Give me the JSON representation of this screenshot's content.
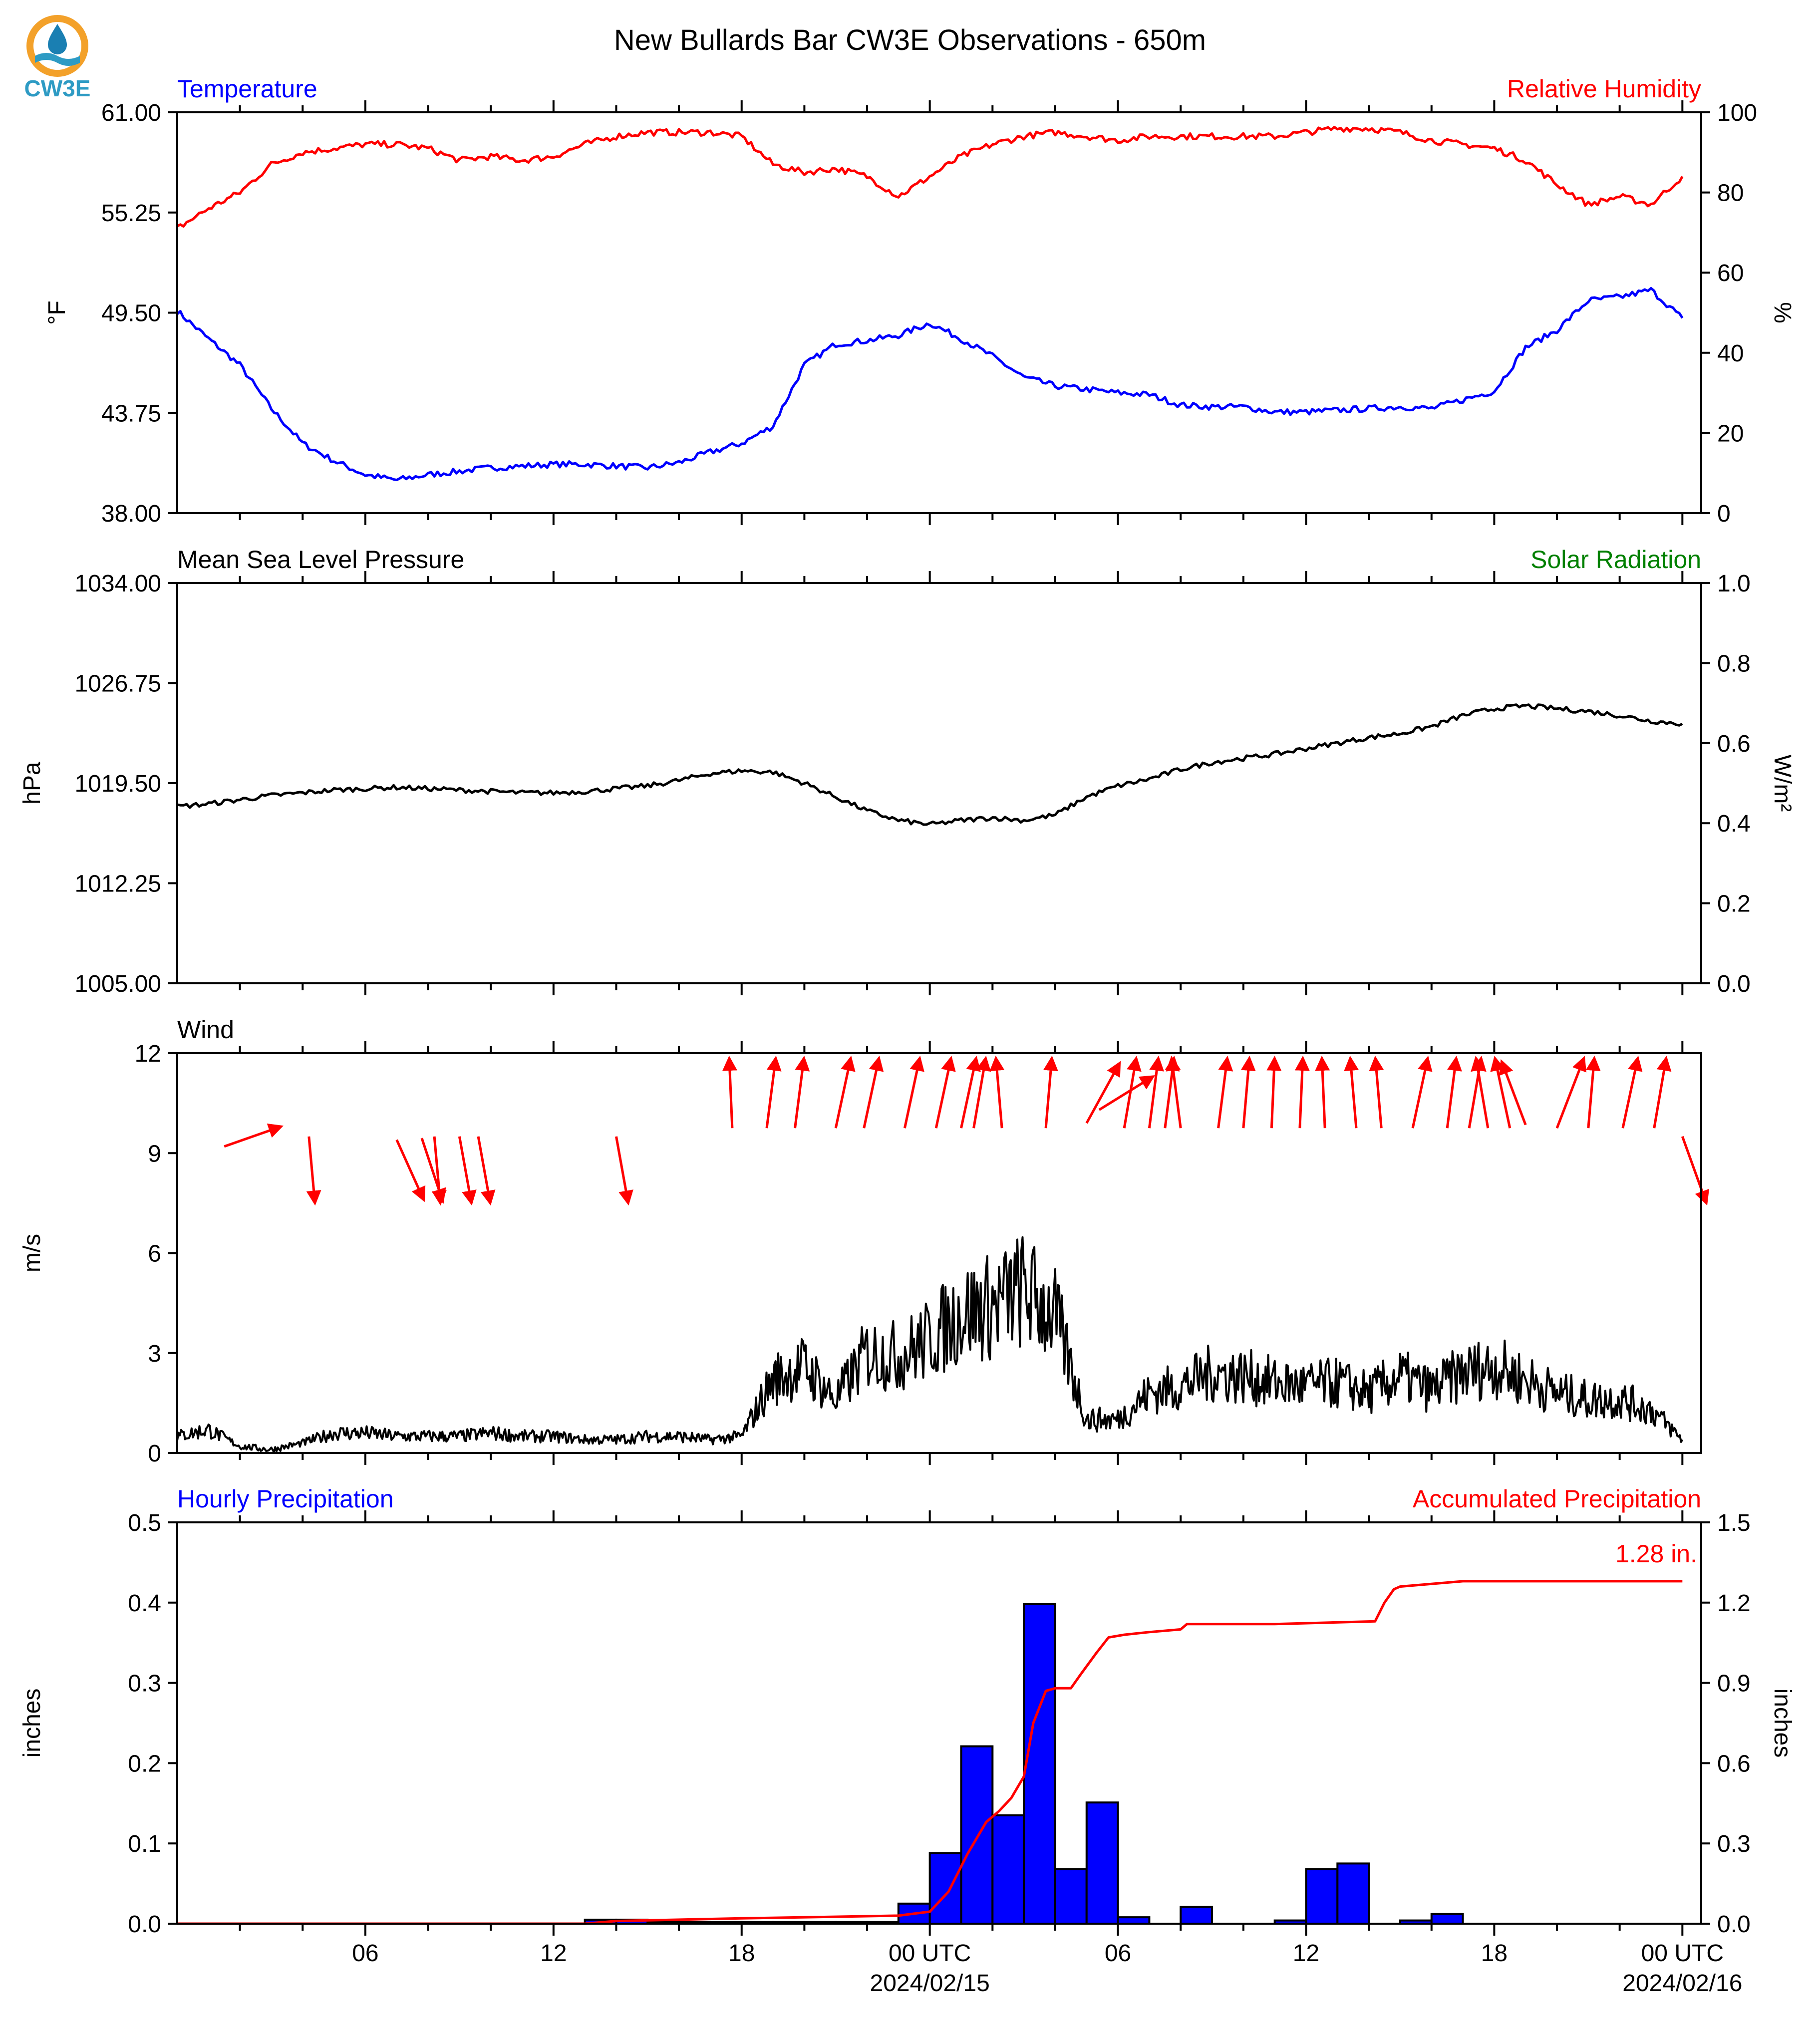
{
  "title": "New Bullards Bar CW3E Observations - 650m",
  "logo": {
    "text": "CW3E",
    "color": "#2e9bc4",
    "accent": "#f3a12a",
    "drop_color": "#1a7fb2"
  },
  "colors": {
    "temperature": "#0000ff",
    "humidity": "#ff0000",
    "pressure": "#000000",
    "wind": "#000000",
    "arrows": "#ff0000",
    "hourly_bars": "#0000ff",
    "accumulated": "#ff0000",
    "solar": "#008000"
  },
  "x_axis": {
    "ticks": [
      "06",
      "12",
      "18",
      "00 UTC",
      "06",
      "12",
      "18",
      "00 UTC"
    ],
    "dates": [
      "2024/02/15",
      "2024/02/16"
    ]
  },
  "chart_data": [
    {
      "type": "line",
      "left_title": "Temperature",
      "right_title": "Relative Humidity",
      "ylabel": "°F",
      "y2label": "%",
      "ylim": [
        38.0,
        61.0
      ],
      "y2lim": [
        0,
        100
      ],
      "yticks": [
        "38.00",
        "43.75",
        "49.50",
        "55.25",
        "61.00"
      ],
      "y2ticks": [
        "0",
        "20",
        "40",
        "60",
        "80",
        "100"
      ],
      "hours": [
        0,
        1,
        2,
        3,
        4,
        5,
        6,
        7,
        8,
        9,
        10,
        11,
        12,
        13,
        14,
        15,
        16,
        17,
        18,
        19,
        20,
        21,
        22,
        23,
        24,
        25,
        26,
        27,
        28,
        29,
        30,
        31,
        32,
        33,
        34,
        35,
        36,
        37,
        38,
        39,
        40,
        41,
        42,
        43,
        44,
        45,
        46,
        47,
        48
      ],
      "series": [
        {
          "name": "Temperature",
          "axis": "left",
          "values": [
            49.6,
            48.0,
            46.5,
            44.0,
            42.0,
            41.0,
            40.2,
            39.9,
            40.2,
            40.4,
            40.6,
            40.7,
            40.8,
            40.8,
            40.7,
            40.6,
            40.9,
            41.5,
            42.0,
            43.0,
            46.5,
            47.7,
            47.9,
            48.2,
            48.9,
            48.0,
            47.0,
            45.8,
            45.3,
            45.1,
            44.9,
            44.8,
            44.2,
            44.1,
            44.1,
            43.8,
            43.8,
            43.9,
            44.0,
            44.1,
            44.0,
            44.5,
            45.0,
            47.5,
            48.5,
            50.2,
            50.4,
            50.8,
            49.2
          ]
        },
        {
          "name": "Relative Humidity",
          "axis": "right",
          "values": [
            71,
            76,
            80,
            87,
            90,
            91,
            92,
            92,
            91,
            88,
            89,
            88,
            89,
            92,
            94,
            95,
            95,
            95,
            94,
            87,
            85,
            86,
            84,
            79,
            84,
            89,
            92,
            94,
            95,
            94,
            93,
            94,
            94,
            94,
            94,
            94,
            95,
            96,
            96,
            95,
            93,
            92,
            91,
            88,
            82,
            77,
            79,
            77,
            84
          ]
        }
      ]
    },
    {
      "type": "line",
      "left_title": "Mean Sea Level Pressure",
      "right_title": "Solar Radiation",
      "ylabel": "hPa",
      "y2label": "W/m²",
      "ylim": [
        1005.0,
        1034.0
      ],
      "y2lim": [
        0.0,
        1.0
      ],
      "yticks": [
        "1005.00",
        "1012.25",
        "1019.50",
        "1026.75",
        "1034.00"
      ],
      "y2ticks": [
        "0.0",
        "0.2",
        "0.4",
        "0.6",
        "0.8",
        "1.0"
      ],
      "hours": [
        0,
        1,
        2,
        3,
        4,
        5,
        6,
        7,
        8,
        9,
        10,
        11,
        12,
        13,
        14,
        15,
        16,
        17,
        18,
        19,
        20,
        21,
        22,
        23,
        24,
        25,
        26,
        27,
        28,
        29,
        30,
        31,
        32,
        33,
        34,
        35,
        36,
        37,
        38,
        39,
        40,
        41,
        42,
        43,
        44,
        45,
        46,
        47,
        48
      ],
      "series": [
        {
          "name": "Pressure",
          "axis": "left",
          "values": [
            1017.8,
            1018.0,
            1018.3,
            1018.6,
            1018.8,
            1019.0,
            1019.1,
            1019.2,
            1019.1,
            1019.0,
            1018.9,
            1018.8,
            1018.8,
            1018.9,
            1019.1,
            1019.3,
            1019.7,
            1020.2,
            1020.4,
            1020.3,
            1019.5,
            1018.5,
            1017.5,
            1016.8,
            1016.5,
            1016.8,
            1017.0,
            1016.8,
            1017.2,
            1018.5,
            1019.3,
            1019.8,
            1020.5,
            1021.0,
            1021.3,
            1021.6,
            1022.0,
            1022.4,
            1022.8,
            1023.1,
            1023.6,
            1024.4,
            1024.9,
            1025.1,
            1024.9,
            1024.7,
            1024.4,
            1024.0,
            1023.8
          ]
        }
      ]
    },
    {
      "type": "line",
      "left_title": "Wind",
      "ylabel": "m/s",
      "ylim": [
        0,
        12
      ],
      "yticks": [
        "0",
        "3",
        "6",
        "9",
        "12"
      ],
      "hours": [
        0,
        1,
        2,
        3,
        4,
        5,
        6,
        7,
        8,
        9,
        10,
        11,
        12,
        13,
        14,
        15,
        16,
        17,
        18,
        19,
        20,
        21,
        22,
        23,
        24,
        25,
        26,
        27,
        28,
        29,
        30,
        31,
        32,
        33,
        34,
        35,
        36,
        37,
        38,
        39,
        40,
        41,
        42,
        43,
        44,
        45,
        46,
        47,
        48
      ],
      "series": [
        {
          "name": "Wind Speed",
          "axis": "left",
          "values": [
            0.5,
            0.7,
            0.2,
            0.1,
            0.3,
            0.6,
            0.6,
            0.5,
            0.5,
            0.5,
            0.6,
            0.5,
            0.5,
            0.4,
            0.4,
            0.5,
            0.5,
            0.4,
            0.5,
            2.2,
            2.6,
            1.6,
            3.0,
            2.9,
            3.4,
            4.2,
            4.4,
            4.9,
            4.1,
            1.0,
            1.0,
            1.8,
            2.0,
            2.4,
            2.3,
            2.1,
            2.0,
            2.1,
            1.8,
            2.3,
            1.9,
            2.4,
            2.6,
            2.2,
            1.8,
            1.6,
            1.6,
            1.3,
            0.4
          ]
        }
      ],
      "wind_barbs": {
        "hours": [
          1.5,
          4.2,
          7.0,
          7.8,
          8.2,
          9.0,
          9.6,
          14.0,
          17.7,
          18.8,
          19.7,
          21.0,
          21.9,
          23.2,
          24.2,
          25.0,
          25.4,
          26.3,
          27.7,
          29.0,
          29.4,
          30.2,
          31.0,
          31.5,
          32.0,
          33.2,
          34.0,
          34.9,
          35.8,
          36.6,
          37.6,
          38.4,
          39.4,
          40.5,
          41.2,
          41.8,
          42.5,
          43.0,
          44.0,
          45.0,
          46.1,
          47.1,
          48.0
        ],
        "y": [
          9.5,
          8.5,
          8.5,
          8.5,
          8.5,
          8.5,
          8.5,
          8.5,
          10.8,
          10.8,
          10.8,
          10.8,
          10.8,
          10.8,
          10.8,
          10.8,
          10.8,
          10.8,
          10.8,
          10.8,
          10.8,
          10.8,
          10.8,
          10.8,
          10.8,
          10.8,
          10.8,
          10.8,
          10.8,
          10.8,
          10.8,
          10.8,
          10.8,
          10.8,
          10.8,
          10.8,
          10.8,
          10.8,
          10.8,
          10.8,
          10.8,
          10.8,
          8.5
        ],
        "dx": [
          1.9,
          0.2,
          0.9,
          0.7,
          0.2,
          0.4,
          0.4,
          0.4,
          -0.1,
          0.3,
          0.3,
          0.5,
          0.5,
          0.5,
          0.5,
          0.5,
          0.4,
          -0.2,
          0.2,
          1.1,
          1.8,
          0.4,
          0.3,
          0.3,
          -0.3,
          0.3,
          0.2,
          0.1,
          0.1,
          -0.1,
          -0.2,
          -0.2,
          0.5,
          0.3,
          0.4,
          -0.4,
          -0.5,
          -0.8,
          0.9,
          0.2,
          0.5,
          0.4,
          0.8
        ],
        "dy": [
          0.6,
          -2.0,
          -1.8,
          -1.9,
          -2.0,
          -2.0,
          -2.0,
          -2.0,
          2.1,
          2.1,
          2.1,
          2.1,
          2.1,
          2.1,
          2.1,
          2.1,
          2.1,
          2.1,
          2.1,
          1.8,
          1.0,
          2.1,
          2.1,
          2.1,
          2.1,
          2.1,
          2.1,
          2.1,
          2.1,
          2.1,
          2.1,
          2.1,
          2.1,
          2.1,
          2.1,
          2.1,
          2.1,
          1.9,
          2.1,
          2.1,
          2.1,
          2.1,
          -2.0
        ]
      }
    },
    {
      "type": "bar",
      "left_title": "Hourly Precipitation",
      "right_title": "Accumulated Precipitation",
      "ylabel": "inches",
      "y2label": "inches",
      "ylim": [
        0.0,
        0.5
      ],
      "y2lim": [
        0.0,
        1.5
      ],
      "yticks": [
        "0.0",
        "0.1",
        "0.2",
        "0.3",
        "0.4",
        "0.5"
      ],
      "y2ticks": [
        "0.0",
        "0.3",
        "0.6",
        "0.9",
        "1.2",
        "1.5"
      ],
      "total_label": "1.28 in.",
      "bar_hours": [
        13,
        14,
        15,
        16,
        17,
        18,
        19,
        20,
        21,
        22,
        23,
        24,
        25,
        26,
        27,
        28,
        29,
        30,
        31,
        32,
        33,
        34,
        35,
        36,
        37,
        38,
        39,
        40,
        41,
        42,
        43
      ],
      "bar_values": [
        0.005,
        0.005,
        0.002,
        0.002,
        0.002,
        0.002,
        0.002,
        0.002,
        0.002,
        0.002,
        0.025,
        0.088,
        0.221,
        0.135,
        0.398,
        0.068,
        0.151,
        0.008,
        0.0,
        0.021,
        0.0,
        0.0,
        0.004,
        0.068,
        0.075,
        0.0,
        0.004,
        0.012,
        0.0,
        0.0,
        0.0
      ],
      "accum_hours": [
        0,
        13,
        14,
        18,
        23,
        24,
        24.6,
        25.2,
        25.8,
        26.2,
        26.6,
        27.0,
        27.3,
        27.7,
        28.0,
        28.5,
        28.8,
        29.3,
        29.7,
        30.2,
        31.0,
        32.0,
        32.2,
        35.0,
        38.2,
        38.5,
        38.8,
        39.0,
        41.0,
        48.0
      ],
      "accum_values": [
        0.0,
        0.0,
        0.01,
        0.02,
        0.03,
        0.045,
        0.12,
        0.26,
        0.38,
        0.42,
        0.47,
        0.55,
        0.75,
        0.87,
        0.88,
        0.88,
        0.93,
        1.01,
        1.07,
        1.08,
        1.09,
        1.1,
        1.12,
        1.12,
        1.13,
        1.2,
        1.25,
        1.26,
        1.28,
        1.28
      ]
    }
  ]
}
